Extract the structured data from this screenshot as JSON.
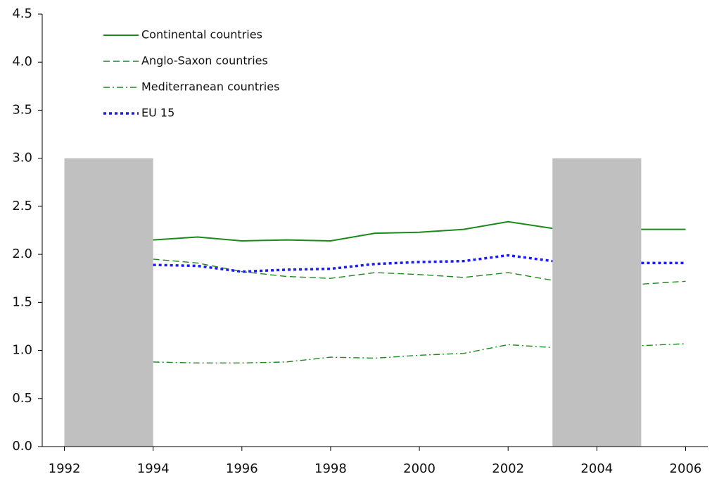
{
  "chart_data": {
    "type": "line",
    "x": [
      1994,
      1995,
      1996,
      1997,
      1998,
      1999,
      2000,
      2001,
      2002,
      2003,
      2004,
      2005,
      2006
    ],
    "series": [
      {
        "name": "Continental countries",
        "color": "#1a8a1a",
        "style": "solid",
        "values": [
          2.15,
          2.18,
          2.14,
          2.15,
          2.14,
          2.22,
          2.23,
          2.26,
          2.34,
          2.27,
          2.26,
          2.26,
          2.26
        ]
      },
      {
        "name": "Anglo-Saxon countries",
        "color": "#1a8a1a",
        "style": "dashed",
        "values": [
          1.95,
          1.91,
          1.82,
          1.77,
          1.75,
          1.81,
          1.79,
          1.76,
          1.81,
          1.73,
          1.7,
          1.69,
          1.72
        ]
      },
      {
        "name": "Mediterranean countries",
        "color": "#1a8a1a",
        "style": "dashdot",
        "values": [
          0.88,
          0.87,
          0.87,
          0.88,
          0.93,
          0.92,
          0.95,
          0.97,
          1.06,
          1.03,
          1.04,
          1.05,
          1.07
        ]
      },
      {
        "name": "EU 15",
        "color": "#1a1aff",
        "style": "dotted",
        "values": [
          1.89,
          1.88,
          1.82,
          1.84,
          1.85,
          1.9,
          1.92,
          1.93,
          1.99,
          1.93,
          1.91,
          1.91,
          1.91
        ]
      }
    ],
    "shaded_regions": [
      {
        "x": [
          1992,
          1994
        ],
        "y": [
          0,
          3
        ]
      },
      {
        "x": [
          2003,
          2005
        ],
        "y": [
          0,
          3
        ]
      }
    ],
    "shade_color": "#c0c0c0",
    "xlim": [
      1991.5,
      2006.5
    ],
    "xticks": [
      1992,
      1994,
      1996,
      1998,
      2000,
      2002,
      2004,
      2006
    ],
    "ylim": [
      0,
      4.5
    ],
    "yticks": [
      {
        "value": 0,
        "label": "0.0"
      },
      {
        "value": 0.5,
        "label": "0.5"
      },
      {
        "value": 1,
        "label": "1.0"
      },
      {
        "value": 1.5,
        "label": "1.5"
      },
      {
        "value": 2,
        "label": "2.0"
      },
      {
        "value": 2.5,
        "label": "2.5"
      },
      {
        "value": 3,
        "label": "3.0"
      },
      {
        "value": 3.5,
        "label": "3.5"
      },
      {
        "value": 4,
        "label": "4.0"
      },
      {
        "value": 4.5,
        "label": "4.5"
      }
    ],
    "grid": false,
    "legend": "top-left"
  }
}
